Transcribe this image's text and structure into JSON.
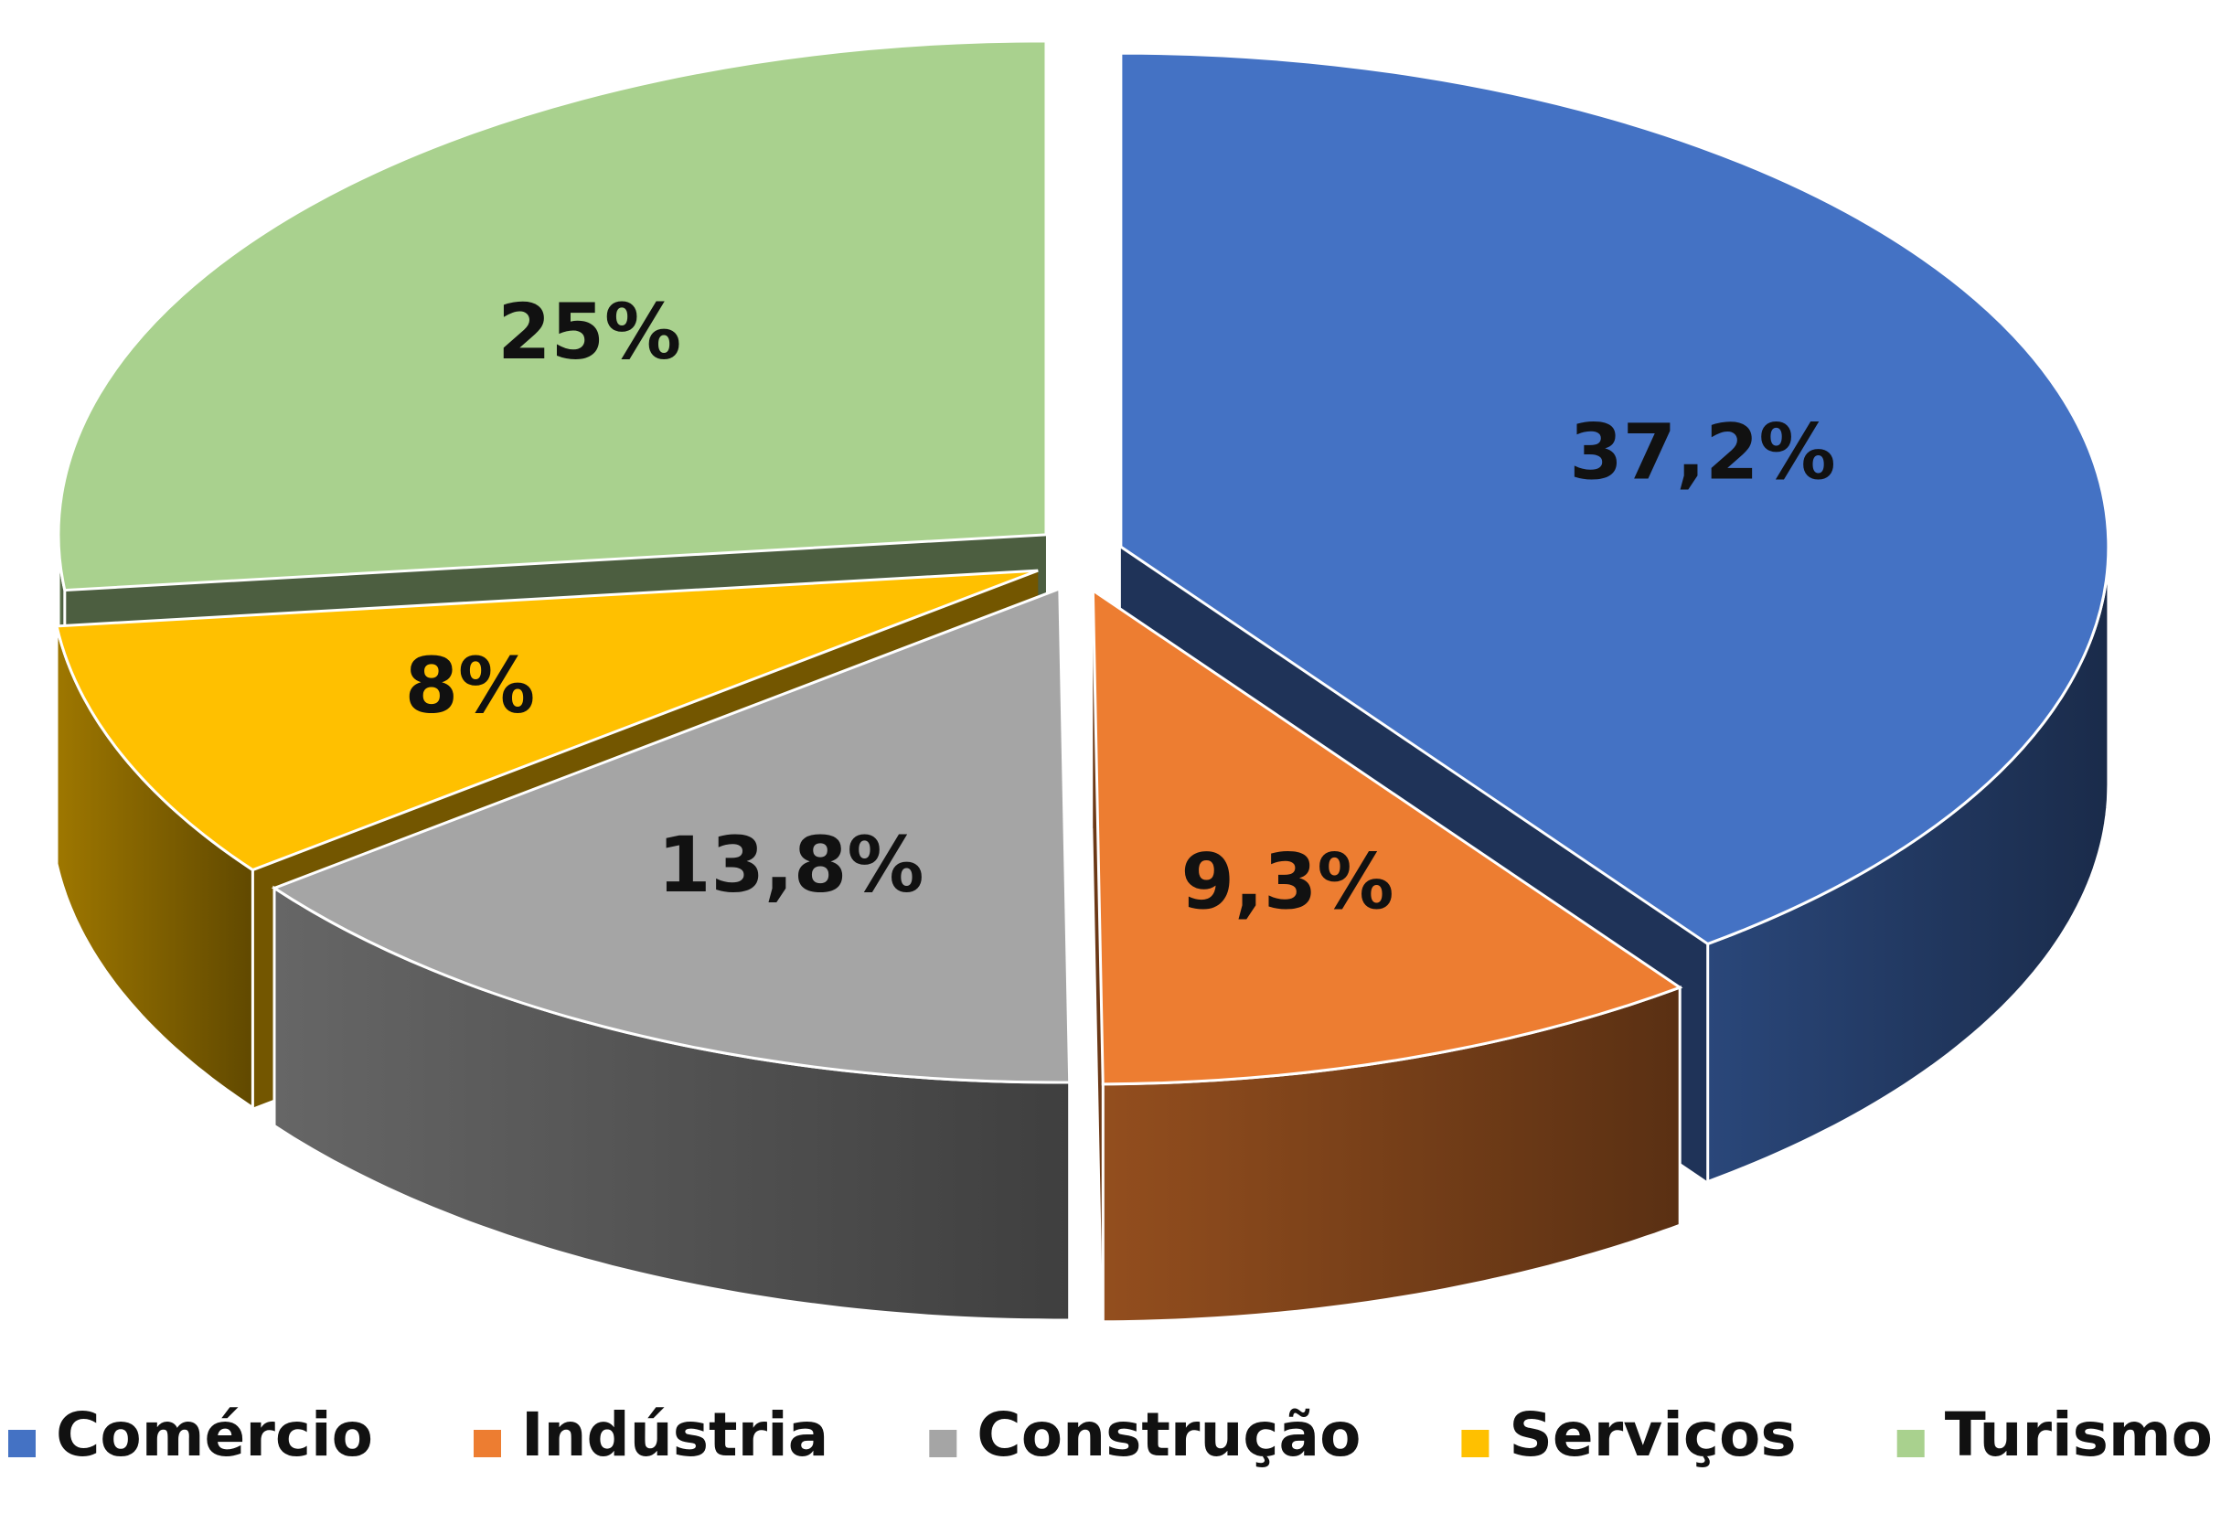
{
  "chart_data": {
    "type": "pie",
    "style": "3d-exploded",
    "categories": [
      "Comércio",
      "Indústria",
      "Construção",
      "Serviços",
      "Turismo"
    ],
    "values": [
      37.2,
      9.3,
      13.8,
      8,
      25
    ],
    "data_labels": [
      "37,2%",
      "9,3%",
      "13,8%",
      "8%",
      "25%"
    ],
    "colors": [
      "#4472C4",
      "#ED7D31",
      "#A5A5A5",
      "#FFC000",
      "#A9D18E"
    ],
    "legend_position": "bottom",
    "title": ""
  }
}
